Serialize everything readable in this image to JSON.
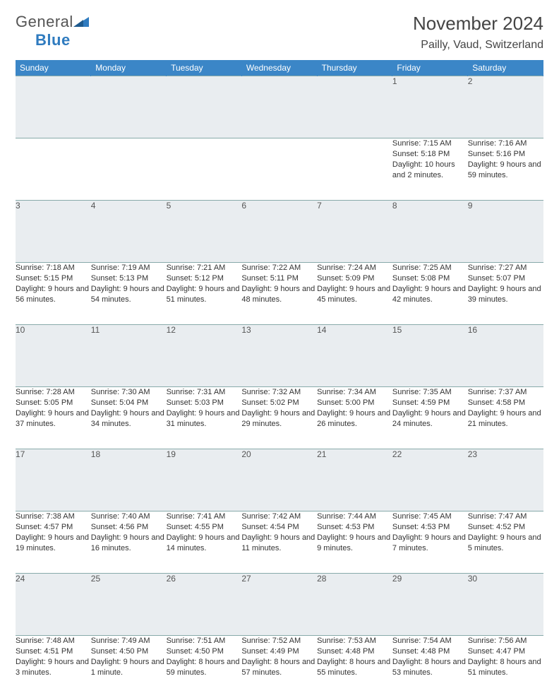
{
  "brand": {
    "part1": "General",
    "part2": "Blue"
  },
  "title": "November 2024",
  "location": "Pailly, Vaud, Switzerland",
  "colors": {
    "header_bg": "#3b86c7",
    "header_text": "#ffffff",
    "daynum_bg": "#e9edf0",
    "border": "#7a98a8",
    "brand_blue": "#2f7bbf",
    "text": "#333333"
  },
  "dayHeaders": [
    "Sunday",
    "Monday",
    "Tuesday",
    "Wednesday",
    "Thursday",
    "Friday",
    "Saturday"
  ],
  "weeks": [
    [
      {
        "num": "",
        "lines": []
      },
      {
        "num": "",
        "lines": []
      },
      {
        "num": "",
        "lines": []
      },
      {
        "num": "",
        "lines": []
      },
      {
        "num": "",
        "lines": []
      },
      {
        "num": "1",
        "lines": [
          "Sunrise: 7:15 AM",
          "Sunset: 5:18 PM",
          "Daylight: 10 hours and 2 minutes."
        ]
      },
      {
        "num": "2",
        "lines": [
          "Sunrise: 7:16 AM",
          "Sunset: 5:16 PM",
          "Daylight: 9 hours and 59 minutes."
        ]
      }
    ],
    [
      {
        "num": "3",
        "lines": [
          "Sunrise: 7:18 AM",
          "Sunset: 5:15 PM",
          "Daylight: 9 hours and 56 minutes."
        ]
      },
      {
        "num": "4",
        "lines": [
          "Sunrise: 7:19 AM",
          "Sunset: 5:13 PM",
          "Daylight: 9 hours and 54 minutes."
        ]
      },
      {
        "num": "5",
        "lines": [
          "Sunrise: 7:21 AM",
          "Sunset: 5:12 PM",
          "Daylight: 9 hours and 51 minutes."
        ]
      },
      {
        "num": "6",
        "lines": [
          "Sunrise: 7:22 AM",
          "Sunset: 5:11 PM",
          "Daylight: 9 hours and 48 minutes."
        ]
      },
      {
        "num": "7",
        "lines": [
          "Sunrise: 7:24 AM",
          "Sunset: 5:09 PM",
          "Daylight: 9 hours and 45 minutes."
        ]
      },
      {
        "num": "8",
        "lines": [
          "Sunrise: 7:25 AM",
          "Sunset: 5:08 PM",
          "Daylight: 9 hours and 42 minutes."
        ]
      },
      {
        "num": "9",
        "lines": [
          "Sunrise: 7:27 AM",
          "Sunset: 5:07 PM",
          "Daylight: 9 hours and 39 minutes."
        ]
      }
    ],
    [
      {
        "num": "10",
        "lines": [
          "Sunrise: 7:28 AM",
          "Sunset: 5:05 PM",
          "Daylight: 9 hours and 37 minutes."
        ]
      },
      {
        "num": "11",
        "lines": [
          "Sunrise: 7:30 AM",
          "Sunset: 5:04 PM",
          "Daylight: 9 hours and 34 minutes."
        ]
      },
      {
        "num": "12",
        "lines": [
          "Sunrise: 7:31 AM",
          "Sunset: 5:03 PM",
          "Daylight: 9 hours and 31 minutes."
        ]
      },
      {
        "num": "13",
        "lines": [
          "Sunrise: 7:32 AM",
          "Sunset: 5:02 PM",
          "Daylight: 9 hours and 29 minutes."
        ]
      },
      {
        "num": "14",
        "lines": [
          "Sunrise: 7:34 AM",
          "Sunset: 5:00 PM",
          "Daylight: 9 hours and 26 minutes."
        ]
      },
      {
        "num": "15",
        "lines": [
          "Sunrise: 7:35 AM",
          "Sunset: 4:59 PM",
          "Daylight: 9 hours and 24 minutes."
        ]
      },
      {
        "num": "16",
        "lines": [
          "Sunrise: 7:37 AM",
          "Sunset: 4:58 PM",
          "Daylight: 9 hours and 21 minutes."
        ]
      }
    ],
    [
      {
        "num": "17",
        "lines": [
          "Sunrise: 7:38 AM",
          "Sunset: 4:57 PM",
          "Daylight: 9 hours and 19 minutes."
        ]
      },
      {
        "num": "18",
        "lines": [
          "Sunrise: 7:40 AM",
          "Sunset: 4:56 PM",
          "Daylight: 9 hours and 16 minutes."
        ]
      },
      {
        "num": "19",
        "lines": [
          "Sunrise: 7:41 AM",
          "Sunset: 4:55 PM",
          "Daylight: 9 hours and 14 minutes."
        ]
      },
      {
        "num": "20",
        "lines": [
          "Sunrise: 7:42 AM",
          "Sunset: 4:54 PM",
          "Daylight: 9 hours and 11 minutes."
        ]
      },
      {
        "num": "21",
        "lines": [
          "Sunrise: 7:44 AM",
          "Sunset: 4:53 PM",
          "Daylight: 9 hours and 9 minutes."
        ]
      },
      {
        "num": "22",
        "lines": [
          "Sunrise: 7:45 AM",
          "Sunset: 4:53 PM",
          "Daylight: 9 hours and 7 minutes."
        ]
      },
      {
        "num": "23",
        "lines": [
          "Sunrise: 7:47 AM",
          "Sunset: 4:52 PM",
          "Daylight: 9 hours and 5 minutes."
        ]
      }
    ],
    [
      {
        "num": "24",
        "lines": [
          "Sunrise: 7:48 AM",
          "Sunset: 4:51 PM",
          "Daylight: 9 hours and 3 minutes."
        ]
      },
      {
        "num": "25",
        "lines": [
          "Sunrise: 7:49 AM",
          "Sunset: 4:50 PM",
          "Daylight: 9 hours and 1 minute."
        ]
      },
      {
        "num": "26",
        "lines": [
          "Sunrise: 7:51 AM",
          "Sunset: 4:50 PM",
          "Daylight: 8 hours and 59 minutes."
        ]
      },
      {
        "num": "27",
        "lines": [
          "Sunrise: 7:52 AM",
          "Sunset: 4:49 PM",
          "Daylight: 8 hours and 57 minutes."
        ]
      },
      {
        "num": "28",
        "lines": [
          "Sunrise: 7:53 AM",
          "Sunset: 4:48 PM",
          "Daylight: 8 hours and 55 minutes."
        ]
      },
      {
        "num": "29",
        "lines": [
          "Sunrise: 7:54 AM",
          "Sunset: 4:48 PM",
          "Daylight: 8 hours and 53 minutes."
        ]
      },
      {
        "num": "30",
        "lines": [
          "Sunrise: 7:56 AM",
          "Sunset: 4:47 PM",
          "Daylight: 8 hours and 51 minutes."
        ]
      }
    ]
  ]
}
